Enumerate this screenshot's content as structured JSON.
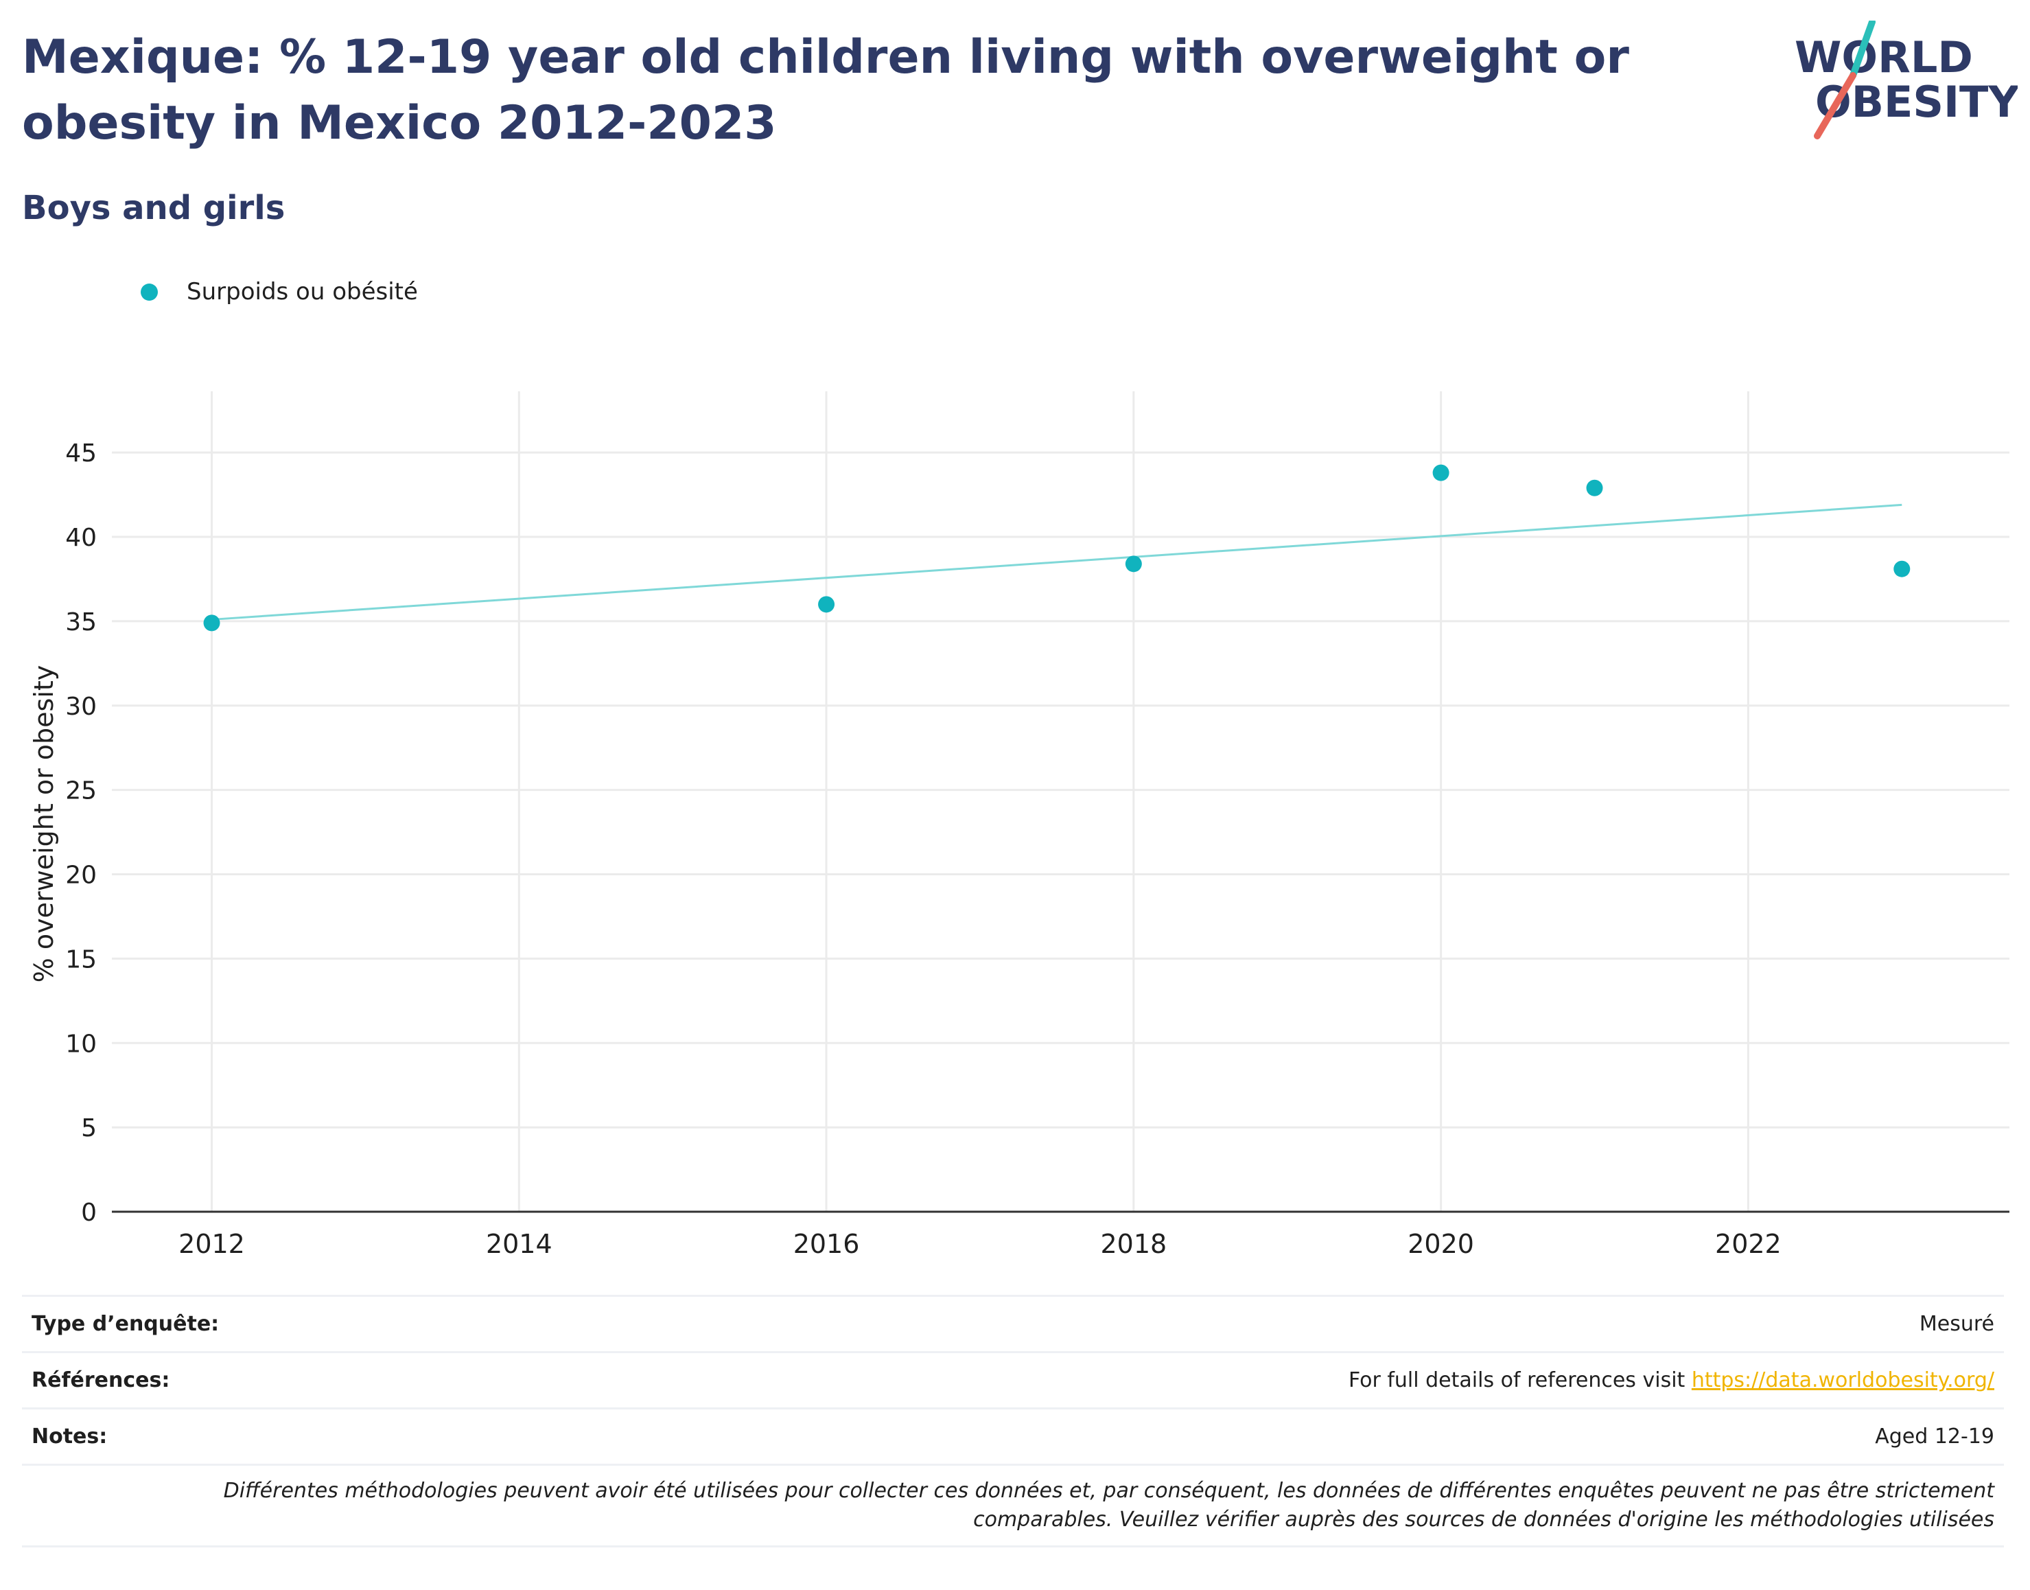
{
  "header": {
    "title": "Mexique: % 12-19 year old children living with overweight or obesity in Mexico 2012-2023",
    "subtitle": "Boys and girls"
  },
  "logo": {
    "line1": "WORLD",
    "line2": "OBESITY",
    "text_color": "#2e3a66",
    "teal_slash": "#2bbfb9",
    "red_slash": "#e8675a"
  },
  "legend": {
    "label": "Surpoids ou obésité",
    "color": "#10b3be"
  },
  "chart_data": {
    "type": "scatter",
    "ylabel": "% overweight or obesity",
    "xlabel": "",
    "xlim": [
      2011.35,
      2023.7
    ],
    "ylim": [
      0,
      47
    ],
    "x_ticks": [
      2012,
      2014,
      2016,
      2018,
      2020,
      2022
    ],
    "y_ticks": [
      0,
      5,
      10,
      15,
      20,
      25,
      30,
      35,
      40,
      45
    ],
    "grid": true,
    "legend_position": "top-left",
    "series": [
      {
        "name": "Surpoids ou obésité",
        "color": "#10b3be",
        "x": [
          2012,
          2016,
          2018,
          2020,
          2021,
          2023
        ],
        "y": [
          34.9,
          36.0,
          38.4,
          43.8,
          42.9,
          38.1
        ]
      }
    ],
    "trendline": {
      "color": "#7fd8d8",
      "x": [
        2012,
        2023
      ],
      "y": [
        35.1,
        41.9
      ]
    }
  },
  "meta": {
    "survey_type_label": "Type d’enquête:",
    "survey_type_value": "Mesuré",
    "references_label": "Références:",
    "references_text": "For full details of references visit ",
    "references_link": "https://data.worldobesity.org/",
    "notes_label": "Notes:",
    "notes_value": "Aged 12-19",
    "disclaimer_line1": "Différentes méthodologies peuvent avoir été utilisées pour collecter ces données et, par conséquent, les données de différentes enquêtes peuvent ne pas être strictement",
    "disclaimer_line2": "comparables. Veuillez vérifier auprès des sources de données d'origine les méthodologies utilisées"
  }
}
